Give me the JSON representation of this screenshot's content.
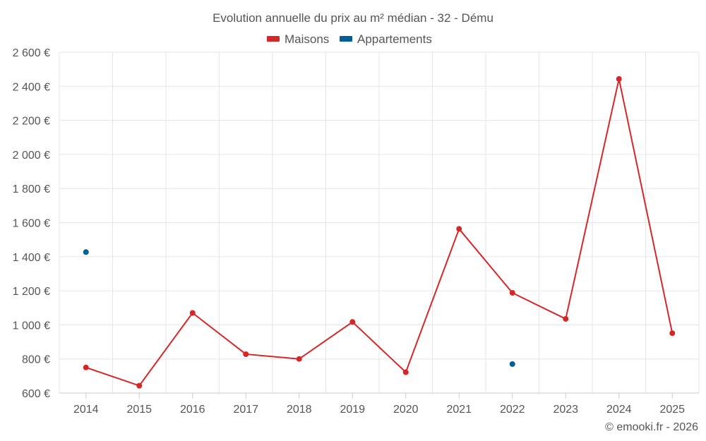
{
  "chart_data": {
    "type": "line",
    "title": "Evolution annuelle du prix au m² médian - 32 - Dému",
    "xlabel": "",
    "ylabel": "",
    "categories": [
      "2014",
      "2015",
      "2016",
      "2017",
      "2018",
      "2019",
      "2020",
      "2021",
      "2022",
      "2023",
      "2024",
      "2025"
    ],
    "ylim": [
      600,
      2600
    ],
    "yticks": [
      600,
      800,
      1000,
      1200,
      1400,
      1600,
      1800,
      2000,
      2200,
      2400,
      2600
    ],
    "ytick_labels": [
      "600 €",
      "800 €",
      "1 000 €",
      "1 200 €",
      "1 400 €",
      "1 600 €",
      "1 800 €",
      "2 000 €",
      "2 200 €",
      "2 400 €",
      "2 600 €"
    ],
    "grid": true,
    "legend_position": "top-center",
    "series": [
      {
        "name": "Maisons",
        "color": "#d62728",
        "show_line": true,
        "values": [
          750,
          643,
          1070,
          828,
          800,
          1017,
          722,
          1563,
          1188,
          1035,
          2443,
          951
        ]
      },
      {
        "name": "Appartements",
        "color": "#005f99",
        "show_line": false,
        "values": [
          1427,
          null,
          null,
          null,
          null,
          null,
          null,
          null,
          770,
          null,
          null,
          null
        ]
      }
    ],
    "credit": "© emooki.fr - 2026"
  }
}
